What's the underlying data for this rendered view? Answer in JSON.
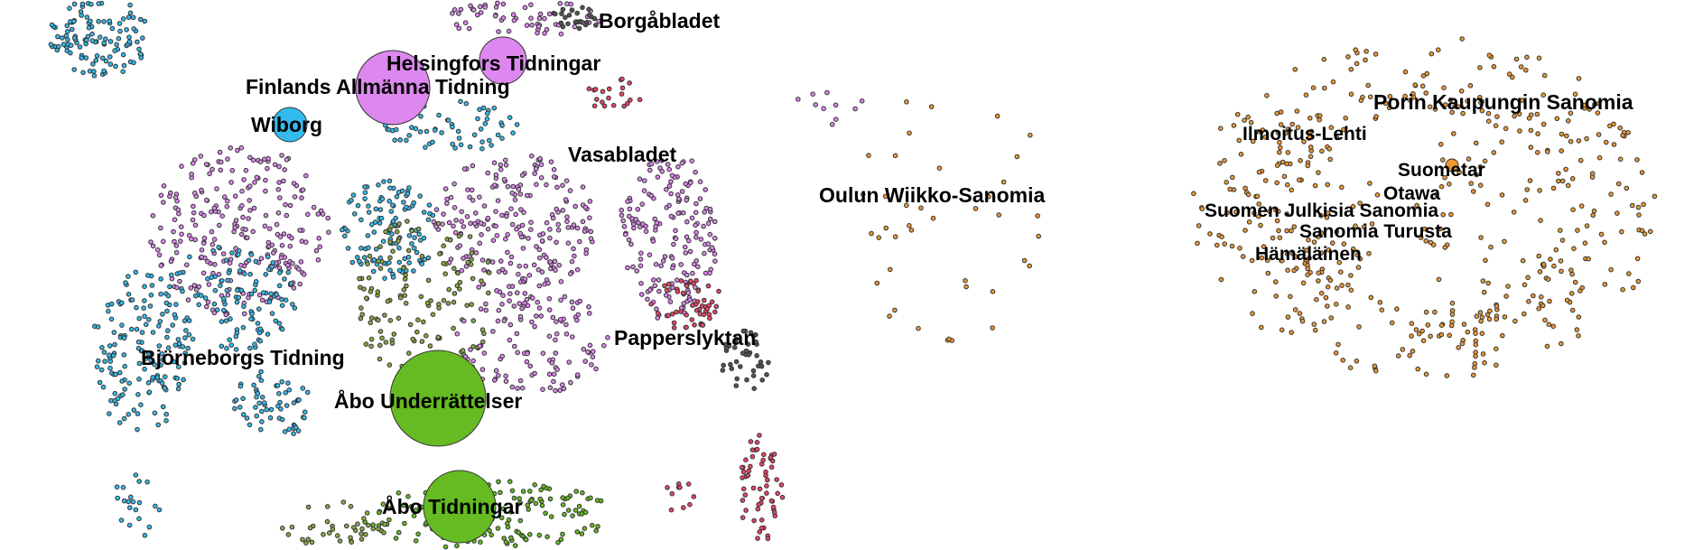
{
  "colors": {
    "swedish_purple": "#dd88ee",
    "abo_green": "#66bb22",
    "viborg_blue": "#33bbee",
    "finnish_orange": "#ee9933",
    "red": "#ee4466",
    "dark": "#555555",
    "olive": "#88aa44"
  },
  "labels": {
    "borgabladet": "Borgåbladet",
    "helsingfors_tidningar": "Helsingfors Tidningar",
    "finlands_allmanna_tidning": "Finlands Allmänna Tidning",
    "wiborg": "Wiborg",
    "vasabladet": "Vasabladet",
    "papperslyktan": "Papperslyktan",
    "bjorneborgs_tidning": "Björneborgs Tidning",
    "abo_underrattelser": "Åbo Underrättelser",
    "abo_tidningar": "Åbo Tidningar",
    "oulun_wiikko_sanomia": "Oulun Wiikko-Sanomia",
    "porin_kaupungin_sanomia": "Porin Kaupungin Sanomia",
    "ilmoitus_lehti": "Ilmoitus-Lehti",
    "suometar": "Suometar",
    "otawa": "Otawa",
    "suomen_julkisia_sanomia": "Suomen Julkisia Sanomia",
    "sanomia_turusta": "Sanomia Turusta",
    "hamalainen": "Hämäläinen"
  }
}
